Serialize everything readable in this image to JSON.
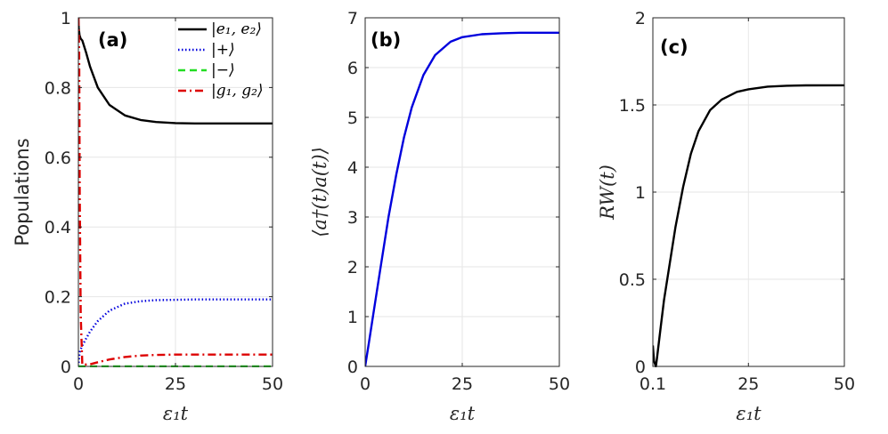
{
  "chart_data": [
    {
      "panel_label": "(a)",
      "type": "line",
      "xlabel": "ε₁t",
      "ylabel": "Populations",
      "xlim": [
        0,
        50
      ],
      "ylim": [
        0,
        1
      ],
      "xticks": [
        "0",
        "25",
        "50"
      ],
      "yticks": [
        "0",
        "0.2",
        "0.4",
        "0.6",
        "0.8",
        "1"
      ],
      "grid": true,
      "legend_position": "top-right",
      "series": [
        {
          "name": "|e₁, e₂⟩",
          "color": "#000000",
          "style": "solid",
          "x": [
            0,
            0.1,
            0.3,
            0.6,
            1,
            2,
            3,
            5,
            8,
            12,
            16,
            20,
            25,
            30,
            40,
            50
          ],
          "y": [
            1,
            0.97,
            0.95,
            0.94,
            0.935,
            0.9,
            0.86,
            0.8,
            0.75,
            0.72,
            0.707,
            0.701,
            0.698,
            0.697,
            0.697,
            0.697
          ]
        },
        {
          "name": "|+⟩",
          "color": "#0000dd",
          "style": "dotted",
          "x": [
            0,
            0.3,
            1,
            2,
            3,
            5,
            8,
            12,
            16,
            20,
            25,
            30,
            40,
            50
          ],
          "y": [
            0,
            0.04,
            0.06,
            0.08,
            0.1,
            0.13,
            0.16,
            0.18,
            0.187,
            0.19,
            0.191,
            0.192,
            0.192,
            0.192
          ]
        },
        {
          "name": "|−⟩",
          "color": "#22dd22",
          "style": "dashed",
          "x": [
            0,
            50
          ],
          "y": [
            0,
            0
          ]
        },
        {
          "name": "|g₁, g₂⟩",
          "color": "#dd0000",
          "style": "dashdot",
          "x": [
            0,
            0.2,
            0.35,
            0.6,
            1,
            3,
            5,
            8,
            12,
            16,
            20,
            25,
            30,
            40,
            50
          ],
          "y": [
            1,
            0.9,
            0.5,
            0.15,
            0.005,
            0.006,
            0.012,
            0.02,
            0.027,
            0.031,
            0.033,
            0.034,
            0.034,
            0.034,
            0.034
          ]
        }
      ]
    },
    {
      "panel_label": "(b)",
      "type": "line",
      "xlabel": "ε₁t",
      "ylabel": "⟨a†(t)a(t)⟩",
      "xlim": [
        0,
        50
      ],
      "ylim": [
        0,
        7
      ],
      "xticks": [
        "0",
        "25",
        "50"
      ],
      "yticks": [
        "0",
        "1",
        "2",
        "3",
        "4",
        "5",
        "6",
        "7"
      ],
      "grid": true,
      "series": [
        {
          "name": "⟨a†(t)a(t)⟩",
          "color": "#0000dd",
          "style": "solid",
          "x": [
            0,
            1,
            2,
            4,
            6,
            8,
            10,
            12,
            15,
            18,
            22,
            25,
            30,
            35,
            40,
            50
          ],
          "y": [
            0,
            0.5,
            1.0,
            2.0,
            3.0,
            3.85,
            4.6,
            5.2,
            5.85,
            6.25,
            6.52,
            6.61,
            6.67,
            6.69,
            6.7,
            6.7
          ]
        }
      ]
    },
    {
      "panel_label": "(c)",
      "type": "line",
      "xlabel": "ε₁t",
      "ylabel": "RW(t)",
      "xlim": [
        0.1,
        50
      ],
      "ylim": [
        0,
        2
      ],
      "xticks": [
        "0.1",
        "25",
        "50"
      ],
      "xtick_values": [
        0.1,
        25,
        50
      ],
      "yticks": [
        "0",
        "0.5",
        "1",
        "1.5",
        "2"
      ],
      "ytick_values": [
        0,
        0.5,
        1,
        1.5,
        2
      ],
      "grid": true,
      "series": [
        {
          "name": "RW(t)",
          "color": "#000000",
          "style": "solid",
          "x": [
            0.1,
            0.4,
            0.9,
            1.2,
            2,
            3,
            4,
            6,
            8,
            10,
            12,
            15,
            18,
            22,
            25,
            30,
            35,
            40,
            50
          ],
          "y": [
            0.12,
            0.03,
            0.0,
            0.05,
            0.2,
            0.38,
            0.52,
            0.8,
            1.03,
            1.22,
            1.35,
            1.47,
            1.53,
            1.575,
            1.59,
            1.605,
            1.61,
            1.612,
            1.613
          ]
        }
      ]
    }
  ]
}
